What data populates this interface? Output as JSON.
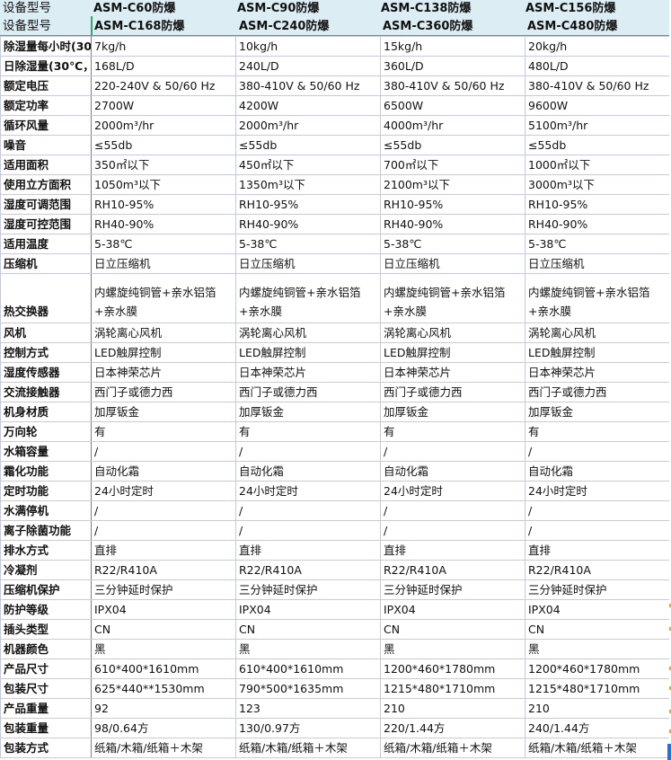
{
  "header": {
    "row1": {
      "label": "设备型号",
      "models": [
        "ASM-C60防爆",
        "ASM-C90防爆",
        "ASM-C138防爆",
        "ASM-C156防爆"
      ]
    },
    "row2": {
      "label": "设备型号",
      "models": [
        "ASM-C168防爆",
        "ASM-C240防爆",
        "ASM-C360防爆",
        "ASM-C480防爆"
      ]
    }
  },
  "rows": [
    {
      "label": "除湿量每小时(30",
      "values": [
        "7kg/h",
        "10kg/h",
        "15kg/h",
        "20kg/h"
      ]
    },
    {
      "label": "日除湿量(30℃，",
      "values": [
        "168L/D",
        "240L/D",
        "360L/D",
        "480L/D"
      ]
    },
    {
      "label": "额定电压",
      "values": [
        "220-240V & 50/60 Hz",
        "380-410V & 50/60 Hz",
        "380-410V & 50/60 Hz",
        "380-410V & 50/60 Hz"
      ]
    },
    {
      "label": "额定功率",
      "values": [
        "2700W",
        "4200W",
        "6500W",
        "9600W"
      ]
    },
    {
      "label": "循环风量",
      "values": [
        "2000m³/hr",
        "2000m³/hr",
        "4000m³/hr",
        "5100m³/hr"
      ]
    },
    {
      "label": "噪音",
      "values": [
        "≤55db",
        "≤55db",
        "≤55db",
        "≤55db"
      ]
    },
    {
      "label": "适用面积",
      "values": [
        "350㎡以下",
        "450㎡以下",
        "700㎡以下",
        "1000㎡以下"
      ]
    },
    {
      "label": "使用立方面积",
      "values": [
        "1050m³以下",
        "1350m³以下",
        "2100m³以下",
        "3000m³以下"
      ]
    },
    {
      "label": "湿度可调范围",
      "values": [
        "RH10-95%",
        "RH10-95%",
        "RH10-95%",
        "RH10-95%"
      ]
    },
    {
      "label": "湿度可控范围",
      "values": [
        "RH40-90%",
        "RH40-90%",
        "RH40-90%",
        "RH40-90%"
      ]
    },
    {
      "label": "适用温度",
      "values": [
        "5-38℃",
        "5-38℃",
        "5-38℃",
        "5-38℃"
      ]
    },
    {
      "label": "压缩机",
      "values": [
        "日立压缩机",
        "日立压缩机",
        "日立压缩机",
        "日立压缩机"
      ]
    },
    {
      "label": "热交换器",
      "tall": true,
      "values": [
        "内螺旋纯铜管+亲水铝箔+亲水膜",
        "内螺旋纯铜管+亲水铝箔+亲水膜",
        "内螺旋纯铜管+亲水铝箔+亲水膜",
        "内螺旋纯铜管+亲水铝箔+亲水膜"
      ]
    },
    {
      "label": "风机",
      "values": [
        "涡轮离心风机",
        "涡轮离心风机",
        "涡轮离心风机",
        "涡轮离心风机"
      ]
    },
    {
      "label": "控制方式",
      "values": [
        "LED触屏控制",
        "LED触屏控制",
        "LED触屏控制",
        "LED触屏控制"
      ]
    },
    {
      "label": "湿度传感器",
      "values": [
        "日本神荣芯片",
        "日本神荣芯片",
        "日本神荣芯片",
        "日本神荣芯片"
      ]
    },
    {
      "label": "交流接触器",
      "values": [
        "西门子或德力西",
        "西门子或德力西",
        "西门子或德力西",
        "西门子或德力西"
      ]
    },
    {
      "label": "机身材质",
      "values": [
        "加厚钣金",
        "加厚钣金",
        "加厚钣金",
        "加厚钣金"
      ]
    },
    {
      "label": "万向轮",
      "values": [
        "有",
        "有",
        "有",
        "有"
      ]
    },
    {
      "label": "水箱容量",
      "values": [
        "/",
        "/",
        "/",
        "/"
      ]
    },
    {
      "label": "霜化功能",
      "values": [
        "自动化霜",
        "自动化霜",
        "自动化霜",
        "自动化霜"
      ]
    },
    {
      "label": "定时功能",
      "values": [
        "24小时定时",
        "24小时定时",
        "24小时定时",
        "24小时定时"
      ]
    },
    {
      "label": "水满停机",
      "values": [
        "/",
        "/",
        "/",
        "/"
      ]
    },
    {
      "label": "离子除菌功能",
      "values": [
        "/",
        "/",
        "/",
        "/"
      ]
    },
    {
      "label": "排水方式",
      "values": [
        "直排",
        "直排",
        "直排",
        "直排"
      ]
    },
    {
      "label": "冷凝剂",
      "values": [
        "R22/R410A",
        "R22/R410A",
        "R22/R410A",
        "R22/R410A"
      ]
    },
    {
      "label": "压缩机保护",
      "values": [
        "三分钟延时保护",
        "三分钟延时保护",
        "三分钟延时保护",
        "三分钟延时保护"
      ]
    },
    {
      "label": "防护等级",
      "values": [
        "IPX04",
        "IPX04",
        "IPX04",
        "IPX04"
      ]
    },
    {
      "label": "插头类型",
      "values": [
        "CN",
        "CN",
        "CN",
        "CN"
      ]
    },
    {
      "label": "机器颜色",
      "values": [
        "黑",
        "黑",
        "黑",
        "黑"
      ]
    },
    {
      "label": "产品尺寸",
      "values": [
        "610*400*1610mm",
        "610*400*1610mm",
        "1200*460*1780mm",
        "1200*460*1780mm"
      ]
    },
    {
      "label": "包装尺寸",
      "values": [
        "625*440**1530mm",
        "790*500*1635mm",
        "1215*480*1710mm",
        "1215*480*1710mm"
      ]
    },
    {
      "label": "产品重量",
      "values": [
        "92",
        "123",
        "210",
        "210"
      ]
    },
    {
      "label": "包装重量",
      "values": [
        "98/0.64方",
        "130/0.97方",
        "220/1.44方",
        "240/1.44方"
      ]
    },
    {
      "label": "包装方式",
      "values": [
        "纸箱/木箱/纸箱＋木架",
        "纸箱/木箱/纸箱＋木架",
        "纸箱/木箱/纸箱＋木架",
        "纸箱/木箱/纸箱＋木架"
      ]
    }
  ],
  "colors": {
    "header_bg": "#dcedf3",
    "grid": "#c7c9de",
    "accent_line": "#2fb27a"
  }
}
